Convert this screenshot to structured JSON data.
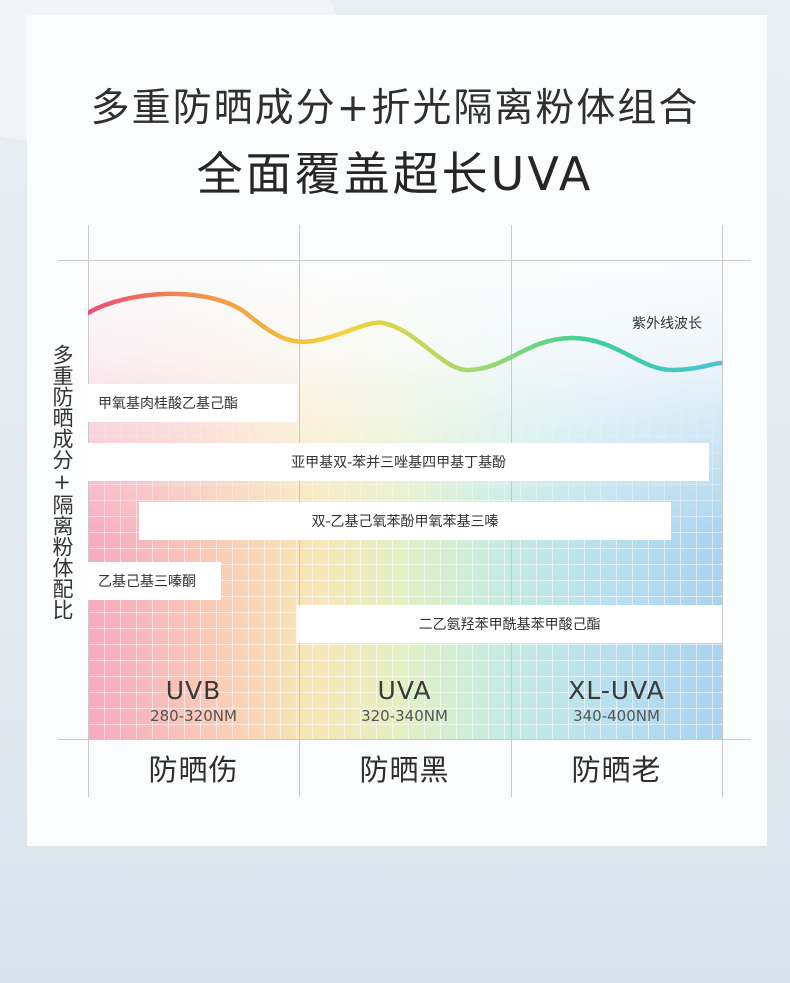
{
  "header": {
    "title_line1": "多重防晒成分+折光隔离粉体组合",
    "title_line2": "全面覆盖超长UVA"
  },
  "y_axis_label": "多重防晒成分+隔离粉体配比",
  "wave_label": "紫外线波长",
  "wave_colors": [
    "#ea4d77",
    "#f39a45",
    "#f6d23a",
    "#a7d96b",
    "#3ccf9a",
    "#4cc3d6"
  ],
  "bands": [
    {
      "name": "UVB",
      "range": "280-320NM",
      "effect": "防晒伤"
    },
    {
      "name": "UVA",
      "range": "320-340NM",
      "effect": "防晒黑"
    },
    {
      "name": "XL-UVA",
      "range": "340-400NM",
      "effect": "防晒老"
    }
  ],
  "ingredients": [
    {
      "name": "甲氧基肉桂酸乙基己酯",
      "start": 0,
      "end": 33,
      "align": "left"
    },
    {
      "name": "亚甲基双-苯并三唑基四甲基丁基酚",
      "start": 0,
      "end": 98,
      "align": "center"
    },
    {
      "name": "双-乙基己氧苯酚甲氧苯基三嗪",
      "start": 8,
      "end": 92,
      "align": "center"
    },
    {
      "name": "乙基己基三嗪酮",
      "start": 0,
      "end": 21,
      "align": "left"
    },
    {
      "name": "二乙氨羟苯甲酰基苯甲酸己酯",
      "start": 33,
      "end": 100,
      "align": "center"
    }
  ]
}
